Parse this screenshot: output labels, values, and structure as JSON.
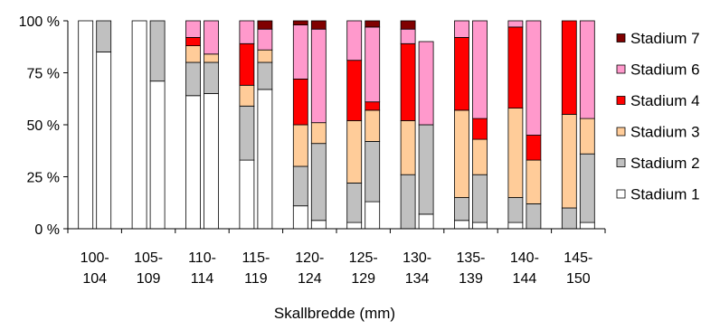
{
  "chart_data": {
    "type": "bar",
    "stacked": "percent",
    "xlabel": "Skallbredde (mm)",
    "ylabel": "",
    "ylim": [
      0,
      100
    ],
    "y_ticks": [
      "0 %",
      "25 %",
      "50 %",
      "75 %",
      "100 %"
    ],
    "y_tick_values": [
      0,
      25,
      50,
      75,
      100
    ],
    "grid": false,
    "legend_position": "right",
    "categories": [
      [
        "100-",
        "104"
      ],
      [
        "105-",
        "109"
      ],
      [
        "110-",
        "114"
      ],
      [
        "115-",
        "119"
      ],
      [
        "120-",
        "124"
      ],
      [
        "125-",
        "129"
      ],
      [
        "130-",
        "134"
      ],
      [
        "135-",
        "139"
      ],
      [
        "140-",
        "144"
      ],
      [
        "145-",
        "150"
      ]
    ],
    "bars_per_category": 2,
    "series": [
      {
        "name": "Stadium 1",
        "color": "#ffffff",
        "values": [
          [
            100,
            85
          ],
          [
            100,
            71
          ],
          [
            64,
            65
          ],
          [
            33,
            67
          ],
          [
            11,
            4
          ],
          [
            3,
            13
          ],
          [
            0,
            7
          ],
          [
            4,
            3
          ],
          [
            3,
            0
          ],
          [
            0,
            3
          ]
        ]
      },
      {
        "name": "Stadium 2",
        "color": "#c0c0c0",
        "values": [
          [
            0,
            15
          ],
          [
            0,
            29
          ],
          [
            16,
            15
          ],
          [
            26,
            13
          ],
          [
            19,
            37
          ],
          [
            19,
            29
          ],
          [
            26,
            43
          ],
          [
            11,
            23
          ],
          [
            12,
            12
          ],
          [
            10,
            33
          ]
        ]
      },
      {
        "name": "Stadium 3",
        "color": "#ffcc99",
        "values": [
          [
            0,
            0
          ],
          [
            0,
            0
          ],
          [
            8,
            4
          ],
          [
            10,
            6
          ],
          [
            20,
            10
          ],
          [
            30,
            15
          ],
          [
            26,
            0
          ],
          [
            42,
            17
          ],
          [
            43,
            21
          ],
          [
            45,
            17
          ]
        ]
      },
      {
        "name": "Stadium 4",
        "color": "#ff0000",
        "values": [
          [
            0,
            0
          ],
          [
            0,
            0
          ],
          [
            4,
            0
          ],
          [
            20,
            0
          ],
          [
            22,
            0
          ],
          [
            29,
            4
          ],
          [
            37,
            0
          ],
          [
            35,
            10
          ],
          [
            39,
            12
          ],
          [
            45,
            0
          ]
        ]
      },
      {
        "name": "Stadium 6",
        "color": "#ff99cc",
        "values": [
          [
            0,
            0
          ],
          [
            0,
            0
          ],
          [
            8,
            16
          ],
          [
            11,
            10
          ],
          [
            26,
            45
          ],
          [
            19,
            36
          ],
          [
            7,
            40
          ],
          [
            8,
            47
          ],
          [
            3,
            55
          ],
          [
            0,
            47
          ]
        ]
      },
      {
        "name": "Stadium 7",
        "color": "#800000",
        "values": [
          [
            0,
            0
          ],
          [
            0,
            0
          ],
          [
            0,
            0
          ],
          [
            0,
            4
          ],
          [
            2,
            4
          ],
          [
            0,
            3
          ],
          [
            4,
            0
          ],
          [
            0,
            0
          ],
          [
            0,
            0
          ],
          [
            0,
            0
          ]
        ]
      }
    ],
    "legend_order": [
      "Stadium 7",
      "Stadium 6",
      "Stadium 4",
      "Stadium 3",
      "Stadium 2",
      "Stadium 1"
    ]
  }
}
